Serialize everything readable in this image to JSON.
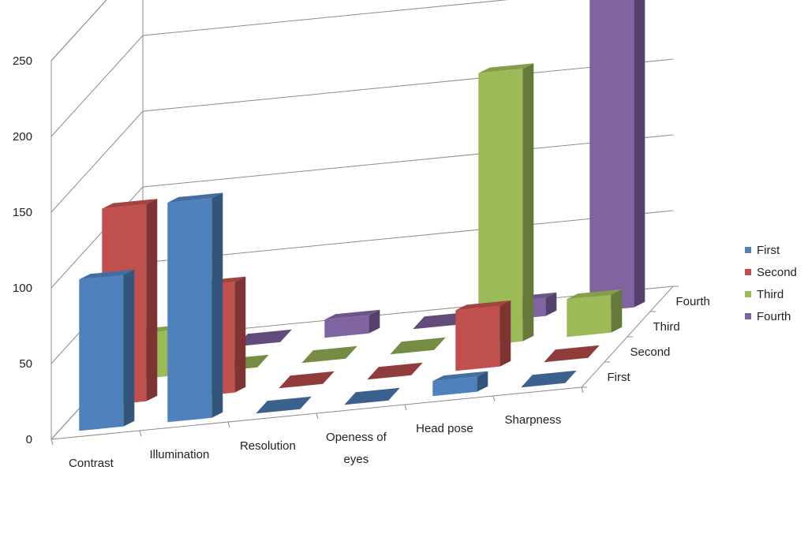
{
  "chart_data": {
    "type": "bar",
    "subtype": "3d-column",
    "title": "",
    "xlabel": "",
    "ylabel": "",
    "ylim": [
      0,
      250
    ],
    "yticks": [
      0,
      50,
      100,
      150,
      200,
      250
    ],
    "grid": true,
    "legend_position": "right",
    "categories": [
      "Contrast",
      "Illumination",
      "Resolution",
      "Openess of eyes",
      "Head pose",
      "Sharpness"
    ],
    "category_lines": [
      [
        "Contrast"
      ],
      [
        "Illumination"
      ],
      [
        "Resolution"
      ],
      [
        "Openess of",
        "eyes"
      ],
      [
        "Head pose"
      ],
      [
        "Sharpness"
      ]
    ],
    "series": [
      {
        "name": "First",
        "color": "#4f81bd",
        "values": [
          100,
          145,
          0,
          0,
          10,
          0
        ]
      },
      {
        "name": "Second",
        "color": "#c0504d",
        "values": [
          130,
          73,
          0,
          0,
          40,
          0
        ]
      },
      {
        "name": "Third",
        "color": "#9bbb59",
        "values": [
          30,
          0,
          0,
          0,
          180,
          25
        ]
      },
      {
        "name": "Fourth",
        "color": "#8064a2",
        "values": [
          0,
          0,
          12,
          0,
          12,
          220
        ]
      }
    ]
  }
}
